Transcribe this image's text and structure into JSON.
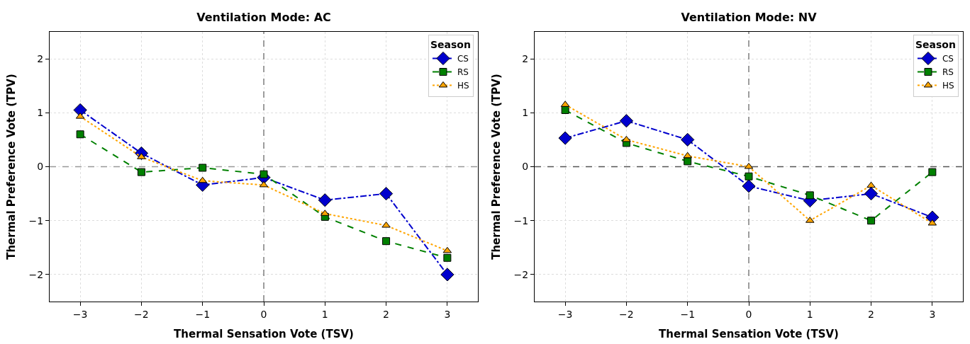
{
  "chart_data": [
    {
      "type": "line",
      "title": "Ventilation Mode: AC",
      "xlabel": "Thermal Sensation Vote (TSV)",
      "ylabel": "Thermal Preference Vote (TPV)",
      "legend_title": "Season",
      "legend": "top right",
      "grid": true,
      "x": [
        -3,
        -2,
        -1,
        0,
        1,
        2,
        3
      ],
      "xlim": [
        -3.5,
        3.5
      ],
      "xticks": [
        -3,
        -2,
        -1,
        0,
        1,
        2,
        3
      ],
      "ylim": [
        -2.5,
        2.5
      ],
      "yticks": [
        -2,
        -1,
        0,
        1,
        2
      ],
      "series": [
        {
          "name": "CS",
          "color": "#0000cd",
          "marker": "diamond",
          "line_style": "dashdot",
          "values": [
            1.05,
            0.25,
            -0.34,
            -0.2,
            -0.62,
            -0.5,
            -2.0
          ]
        },
        {
          "name": "RS",
          "color": "#008000",
          "marker": "square",
          "line_style": "dashed",
          "values": [
            0.6,
            -0.1,
            -0.02,
            -0.14,
            -0.93,
            -1.38,
            -1.69
          ]
        },
        {
          "name": "HS",
          "color": "#ffa500",
          "marker": "triangle",
          "line_style": "dotted",
          "values": [
            0.93,
            0.18,
            -0.26,
            -0.34,
            -0.87,
            -1.09,
            -1.56
          ]
        }
      ],
      "ref_lines": [
        {
          "axis": "x",
          "value": 0,
          "color": "#808080",
          "line_style": "dashed"
        },
        {
          "axis": "y",
          "value": 0,
          "color": "#999999",
          "line_style": "dashed"
        }
      ]
    },
    {
      "type": "line",
      "title": "Ventilation Mode: NV",
      "xlabel": "Thermal Sensation Vote (TSV)",
      "ylabel": "Thermal Preference Vote (TPV)",
      "legend_title": "Season",
      "legend": "top right",
      "grid": true,
      "x": [
        -3,
        -2,
        -1,
        0,
        1,
        2,
        3
      ],
      "xlim": [
        -3.5,
        3.5
      ],
      "xticks": [
        -3,
        -2,
        -1,
        0,
        1,
        2,
        3
      ],
      "ylim": [
        -2.5,
        2.5
      ],
      "yticks": [
        -2,
        -1,
        0,
        1,
        2
      ],
      "series": [
        {
          "name": "CS",
          "color": "#0000cd",
          "marker": "diamond",
          "line_style": "dashdot",
          "values": [
            0.53,
            0.85,
            0.5,
            -0.36,
            -0.63,
            -0.5,
            -0.94
          ]
        },
        {
          "name": "RS",
          "color": "#008000",
          "marker": "square",
          "line_style": "dashed",
          "values": [
            1.05,
            0.44,
            0.1,
            -0.18,
            -0.53,
            -1.0,
            -0.1
          ]
        },
        {
          "name": "HS",
          "color": "#ffa500",
          "marker": "triangle",
          "line_style": "dotted",
          "values": [
            1.15,
            0.5,
            0.2,
            0.0,
            -1.0,
            -0.35,
            -1.05
          ]
        }
      ],
      "ref_lines": [
        {
          "axis": "x",
          "value": 0,
          "color": "#808080",
          "line_style": "dashed"
        },
        {
          "axis": "y",
          "value": 0,
          "color": "#555555",
          "line_style": "dashed"
        }
      ]
    }
  ]
}
